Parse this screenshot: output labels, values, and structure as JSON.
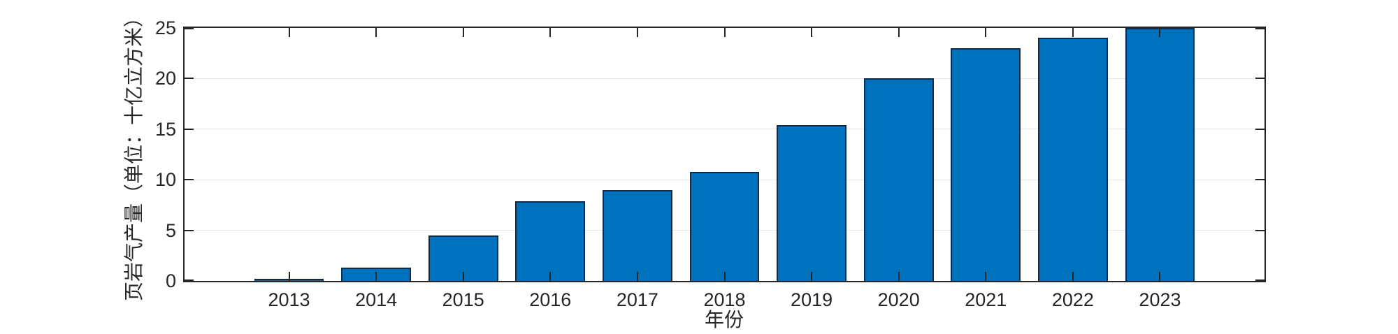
{
  "figure": {
    "background": "#ffffff"
  },
  "chart_data": {
    "type": "bar",
    "title": "",
    "xlabel": "年份",
    "ylabel": "页岩气产量（单位：十亿立方米）",
    "categories": [
      2013,
      2014,
      2015,
      2016,
      2017,
      2018,
      2019,
      2020,
      2021,
      2022,
      2023
    ],
    "values": [
      0.2,
      1.3,
      4.5,
      7.9,
      9.0,
      10.8,
      15.4,
      20.0,
      23.0,
      24.0,
      25.0
    ],
    "yticks": [
      0,
      5,
      10,
      15,
      20,
      25
    ],
    "ytick_labels": [
      "0",
      "5",
      "10",
      "15",
      "20",
      "25"
    ],
    "ylim": [
      0,
      25
    ],
    "xlim": [
      2011.8,
      2024.2
    ],
    "bar_width_years": 0.8,
    "grid": "horizontal-only",
    "legend": "none",
    "colors": {
      "bar_fill": "#0072BD",
      "bar_edge": "#0f2c4e",
      "axis": "#262626",
      "grid": "#e6e6e6",
      "text": "#262626"
    }
  }
}
